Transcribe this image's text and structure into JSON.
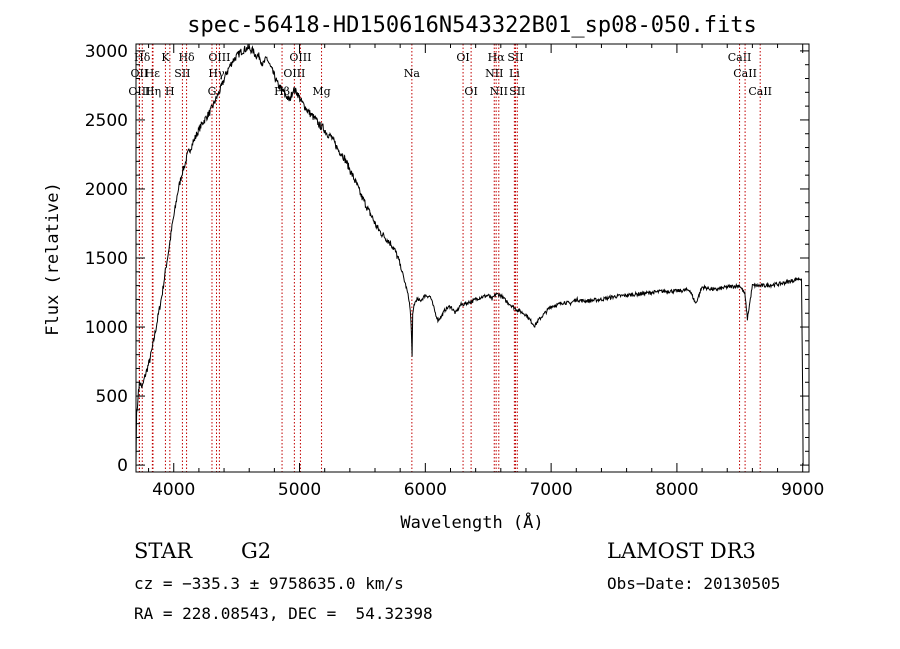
{
  "chart_data": {
    "type": "line",
    "title": "spec-56418-HD150616N543322B01_sp08-050.fits",
    "xlabel": "Wavelength (Å)",
    "ylabel": "Flux (relative)",
    "xlim": [
      3700,
      9050
    ],
    "ylim": [
      -50,
      3050
    ],
    "xticks": [
      4000,
      5000,
      6000,
      7000,
      8000,
      9000
    ],
    "yticks": [
      0,
      500,
      1000,
      1500,
      2000,
      2500,
      3000
    ],
    "series": [
      {
        "name": "flux",
        "x": [
          3700,
          3705,
          3712,
          3720,
          3730,
          3750,
          3770,
          3790,
          3810,
          3830,
          3850,
          3870,
          3890,
          3910,
          3930,
          3950,
          3970,
          3990,
          4010,
          4030,
          4050,
          4070,
          4090,
          4110,
          4130,
          4150,
          4170,
          4200,
          4230,
          4260,
          4290,
          4320,
          4350,
          4380,
          4410,
          4440,
          4470,
          4500,
          4530,
          4560,
          4590,
          4610,
          4630,
          4650,
          4680,
          4710,
          4740,
          4770,
          4800,
          4830,
          4860,
          4890,
          4920,
          4950,
          4980,
          5010,
          5040,
          5070,
          5100,
          5130,
          5160,
          5190,
          5220,
          5250,
          5280,
          5310,
          5340,
          5370,
          5400,
          5430,
          5460,
          5490,
          5520,
          5550,
          5580,
          5610,
          5640,
          5670,
          5700,
          5730,
          5760,
          5790,
          5810,
          5830,
          5850,
          5870,
          5880,
          5890,
          5895,
          5900,
          5910,
          5930,
          5960,
          6000,
          6040,
          6080,
          6100,
          6130,
          6160,
          6200,
          6240,
          6280,
          6320,
          6350,
          6380,
          6420,
          6460,
          6500,
          6530,
          6560,
          6600,
          6640,
          6680,
          6720,
          6760,
          6800,
          6850,
          6870,
          6900,
          6950,
          7000,
          7050,
          7100,
          7150,
          7200,
          7250,
          7300,
          7400,
          7500,
          7600,
          7700,
          7800,
          7900,
          8000,
          8100,
          8150,
          8200,
          8300,
          8400,
          8500,
          8540,
          8560,
          8600,
          8700,
          8800,
          8900,
          8960,
          8990,
          9000,
          9003
        ],
        "y": [
          0,
          380,
          420,
          550,
          600,
          560,
          640,
          700,
          760,
          850,
          950,
          1050,
          1150,
          1250,
          1380,
          1500,
          1620,
          1750,
          1850,
          1970,
          2050,
          2130,
          2180,
          2250,
          2290,
          2330,
          2370,
          2430,
          2480,
          2520,
          2560,
          2620,
          2680,
          2740,
          2820,
          2880,
          2930,
          2960,
          2990,
          3010,
          3020,
          3010,
          3000,
          2970,
          2960,
          2900,
          2950,
          2880,
          2820,
          2750,
          2720,
          2680,
          2640,
          2720,
          2700,
          2640,
          2600,
          2560,
          2530,
          2500,
          2460,
          2440,
          2400,
          2380,
          2330,
          2280,
          2250,
          2200,
          2140,
          2080,
          2020,
          1950,
          1900,
          1840,
          1790,
          1730,
          1690,
          1660,
          1630,
          1600,
          1550,
          1480,
          1420,
          1350,
          1280,
          1200,
          1120,
          950,
          780,
          1080,
          1160,
          1200,
          1190,
          1230,
          1220,
          1100,
          1050,
          1080,
          1130,
          1150,
          1100,
          1160,
          1170,
          1180,
          1190,
          1210,
          1220,
          1230,
          1200,
          1240,
          1230,
          1190,
          1160,
          1130,
          1110,
          1090,
          1030,
          1010,
          1050,
          1100,
          1150,
          1160,
          1180,
          1170,
          1200,
          1190,
          1190,
          1200,
          1220,
          1230,
          1240,
          1250,
          1260,
          1260,
          1270,
          1170,
          1290,
          1270,
          1290,
          1300,
          1240,
          1060,
          1300,
          1300,
          1310,
          1330,
          1350,
          1350,
          500,
          0
        ]
      }
    ],
    "lines": [
      {
        "name": "Hδ",
        "x": 3750,
        "row": 1
      },
      {
        "name": "OII",
        "x": 3727,
        "row": 2
      },
      {
        "name": "OIII",
        "x": 3727,
        "row": 3
      },
      {
        "name": "K",
        "x": 3934,
        "row": 1
      },
      {
        "name": "H",
        "x": 3969,
        "row": 3
      },
      {
        "name": "Hε",
        "x": 3830,
        "row": 2
      },
      {
        "name": "Hη",
        "x": 3835,
        "row": 3
      },
      {
        "name": "SII",
        "x": 4069,
        "row": 2
      },
      {
        "name": "Hδ",
        "x": 4102,
        "row": 1
      },
      {
        "name": "OIII",
        "x": 4363,
        "row": 1
      },
      {
        "name": "Hγ",
        "x": 4340,
        "row": 2
      },
      {
        "name": "G",
        "x": 4304,
        "row": 3
      },
      {
        "name": "Hβ",
        "x": 4861,
        "row": 3
      },
      {
        "name": "OIII",
        "x": 4959,
        "row": 2
      },
      {
        "name": "OIII",
        "x": 5007,
        "row": 1
      },
      {
        "name": "Mg",
        "x": 5175,
        "row": 3
      },
      {
        "name": "Na",
        "x": 5893,
        "row": 2
      },
      {
        "name": "OI",
        "x": 6300,
        "row": 1
      },
      {
        "name": "OI",
        "x": 6364,
        "row": 3
      },
      {
        "name": "Hα",
        "x": 6563,
        "row": 1
      },
      {
        "name": "NII",
        "x": 6548,
        "row": 2
      },
      {
        "name": "NII",
        "x": 6584,
        "row": 3
      },
      {
        "name": "SII",
        "x": 6717,
        "row": 1
      },
      {
        "name": "Li",
        "x": 6708,
        "row": 2
      },
      {
        "name": "SII",
        "x": 6731,
        "row": 3
      },
      {
        "name": "CaII",
        "x": 8498,
        "row": 1
      },
      {
        "name": "CaII",
        "x": 8542,
        "row": 2
      },
      {
        "name": "CaII",
        "x": 8662,
        "row": 3
      }
    ]
  },
  "info": {
    "object_class": "STAR",
    "subclass": "G2",
    "survey": "LAMOST DR3",
    "redshift": "cz = −335.3 ± 9758635.0 km/s",
    "obs_date": "Obs−Date: 20130505",
    "coords": "RA = 228.08543, DEC =  54.32398"
  }
}
